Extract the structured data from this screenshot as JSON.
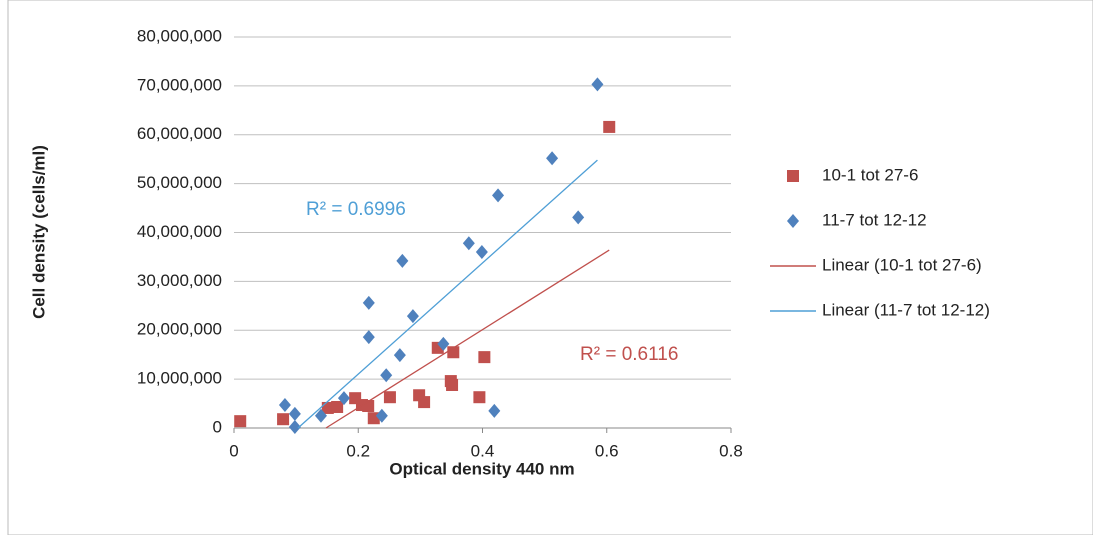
{
  "chart_data": {
    "type": "scatter",
    "x_label": "Optical density 440 nm",
    "y_label": "Cell density (cells/ml)",
    "xlim": [
      0,
      0.8
    ],
    "xticks": [
      0,
      0.2,
      0.4,
      0.6,
      0.8
    ],
    "ylim": [
      0,
      80000000
    ],
    "yticks": [
      0,
      {
        "value": 10000000,
        "label": "10,000,000"
      },
      {
        "value": 20000000,
        "label": "20,000,000"
      },
      {
        "value": 30000000,
        "label": "30,000,000"
      },
      {
        "value": 40000000,
        "label": "40,000,000"
      },
      {
        "value": 50000000,
        "label": "50,000,000"
      },
      {
        "value": 60000000,
        "label": "60,000,000"
      },
      {
        "value": 70000000,
        "label": "70,000,000"
      },
      {
        "value": 80000000,
        "label": "80,000,000"
      }
    ],
    "grid": true,
    "legend": "right",
    "series": [
      {
        "name": "10-1 tot 27-6",
        "color": "#c0504d",
        "marker": "square",
        "mode": "markers",
        "x": [
          0.01,
          0.079,
          0.151,
          0.166,
          0.195,
          0.206,
          0.216,
          0.225,
          0.251,
          0.298,
          0.306,
          0.328,
          0.349,
          0.351,
          0.353,
          0.395,
          0.403,
          0.604
        ],
        "values": [
          1400000,
          1800000,
          4100000,
          4300000,
          6100000,
          4700000,
          4500000,
          2000000,
          6300000,
          6700000,
          5300000,
          16400000,
          9600000,
          8800000,
          15500000,
          6300000,
          14500000,
          61600000
        ]
      },
      {
        "name": "11-7 tot 12-12",
        "color": "#4f81bd",
        "marker": "diamond",
        "mode": "markers",
        "x": [
          0.082,
          0.098,
          0.098,
          0.14,
          0.177,
          0.217,
          0.217,
          0.238,
          0.245,
          0.267,
          0.271,
          0.288,
          0.337,
          0.378,
          0.399,
          0.419,
          0.425,
          0.512,
          0.554,
          0.585
        ],
        "values": [
          4700000,
          2900000,
          200000,
          2500000,
          6100000,
          25600000,
          18600000,
          2500000,
          10800000,
          14900000,
          34200000,
          22900000,
          17200000,
          37800000,
          36000000,
          3500000,
          47600000,
          55200000,
          43100000,
          70300000
        ]
      },
      {
        "name": "Linear (10-1 tot 27-6)",
        "color": "#c0504d",
        "mode": "line",
        "x": [
          0.148,
          0.604
        ],
        "values": [
          0,
          36400000
        ],
        "annotation": "R² = 0.6116"
      },
      {
        "name": "Linear (11-7 tot 12-12)",
        "color": "#4f9fd6",
        "mode": "line",
        "x": [
          0.103,
          0.585
        ],
        "values": [
          0,
          54800000
        ],
        "annotation": "R² = 0.6996"
      }
    ]
  }
}
